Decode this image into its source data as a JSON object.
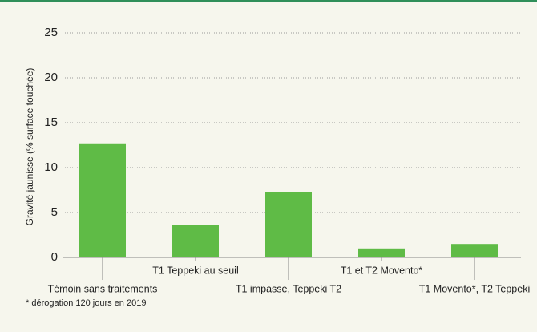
{
  "chart_data": {
    "type": "bar",
    "y_label": "Gravité jaunisse (% surface touchée)",
    "categories": [
      "Témoin sans traitements",
      "T1 Teppeki au seuil",
      "T1 impasse, Teppeki T2",
      "T1 et T2 Movento*",
      "T1 Movento*, T2 Teppeki"
    ],
    "values": [
      12.7,
      3.6,
      7.3,
      1.0,
      1.5
    ],
    "color": "#5fbb46",
    "ylim": [
      0,
      25
    ],
    "yticks": [
      0,
      5,
      10,
      15,
      20,
      25
    ],
    "grid": true
  },
  "footnote": "* dérogation 120 jours en 2019"
}
